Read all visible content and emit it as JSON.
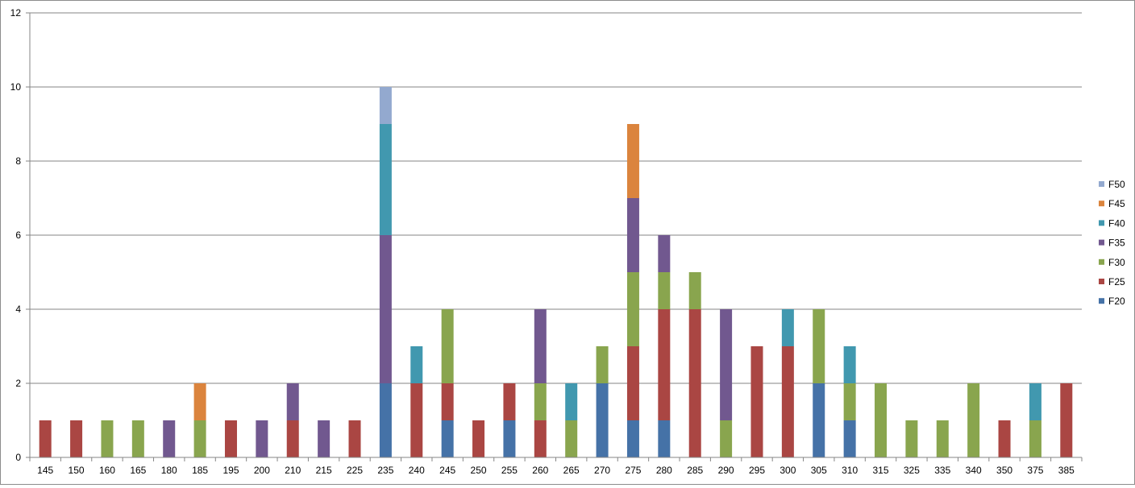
{
  "chart_data": {
    "type": "bar",
    "stacked": true,
    "categories": [
      "145",
      "150",
      "160",
      "165",
      "180",
      "185",
      "195",
      "200",
      "210",
      "215",
      "225",
      "235",
      "240",
      "245",
      "250",
      "255",
      "260",
      "265",
      "270",
      "275",
      "280",
      "285",
      "290",
      "295",
      "300",
      "305",
      "310",
      "315",
      "325",
      "335",
      "340",
      "350",
      "375",
      "385"
    ],
    "series": [
      {
        "name": "F20",
        "color": "#4572a7",
        "values": [
          0,
          0,
          0,
          0,
          0,
          0,
          0,
          0,
          0,
          0,
          0,
          2,
          0,
          1,
          0,
          1,
          0,
          0,
          2,
          1,
          1,
          0,
          0,
          0,
          0,
          2,
          1,
          0,
          0,
          0,
          0,
          0,
          0,
          0
        ]
      },
      {
        "name": "F25",
        "color": "#aa4643",
        "values": [
          1,
          1,
          0,
          0,
          0,
          0,
          1,
          0,
          1,
          0,
          1,
          0,
          2,
          1,
          1,
          1,
          1,
          0,
          0,
          2,
          3,
          4,
          0,
          3,
          3,
          0,
          0,
          0,
          0,
          0,
          0,
          1,
          0,
          2
        ]
      },
      {
        "name": "F30",
        "color": "#89a54e",
        "values": [
          0,
          0,
          1,
          1,
          0,
          1,
          0,
          0,
          0,
          0,
          0,
          0,
          0,
          2,
          0,
          0,
          1,
          1,
          1,
          2,
          1,
          1,
          1,
          0,
          0,
          2,
          1,
          2,
          1,
          1,
          2,
          0,
          1,
          0
        ]
      },
      {
        "name": "F35",
        "color": "#71588f",
        "values": [
          0,
          0,
          0,
          0,
          1,
          0,
          0,
          1,
          1,
          1,
          0,
          4,
          0,
          0,
          0,
          0,
          2,
          0,
          0,
          2,
          1,
          0,
          3,
          0,
          0,
          0,
          0,
          0,
          0,
          0,
          0,
          0,
          0,
          0
        ]
      },
      {
        "name": "F40",
        "color": "#4198af",
        "values": [
          0,
          0,
          0,
          0,
          0,
          0,
          0,
          0,
          0,
          0,
          0,
          3,
          1,
          0,
          0,
          0,
          0,
          1,
          0,
          0,
          0,
          0,
          0,
          0,
          1,
          0,
          1,
          0,
          0,
          0,
          0,
          0,
          1,
          0
        ]
      },
      {
        "name": "F45",
        "color": "#db843d",
        "values": [
          0,
          0,
          0,
          0,
          0,
          1,
          0,
          0,
          0,
          0,
          0,
          0,
          0,
          0,
          0,
          0,
          0,
          0,
          0,
          2,
          0,
          0,
          0,
          0,
          0,
          0,
          0,
          0,
          0,
          0,
          0,
          0,
          0,
          0
        ]
      },
      {
        "name": "F50",
        "color": "#93a9cf",
        "values": [
          0,
          0,
          0,
          0,
          0,
          0,
          0,
          0,
          0,
          0,
          0,
          1,
          0,
          0,
          0,
          0,
          0,
          0,
          0,
          0,
          0,
          0,
          0,
          0,
          0,
          0,
          0,
          0,
          0,
          0,
          0,
          0,
          0,
          0
        ]
      }
    ],
    "ylim": [
      0,
      12
    ],
    "yticks": [
      0,
      2,
      4,
      6,
      8,
      10,
      12
    ],
    "grid": true,
    "legend": "right",
    "legend_order": [
      "F50",
      "F45",
      "F40",
      "F35",
      "F30",
      "F25",
      "F20"
    ]
  }
}
